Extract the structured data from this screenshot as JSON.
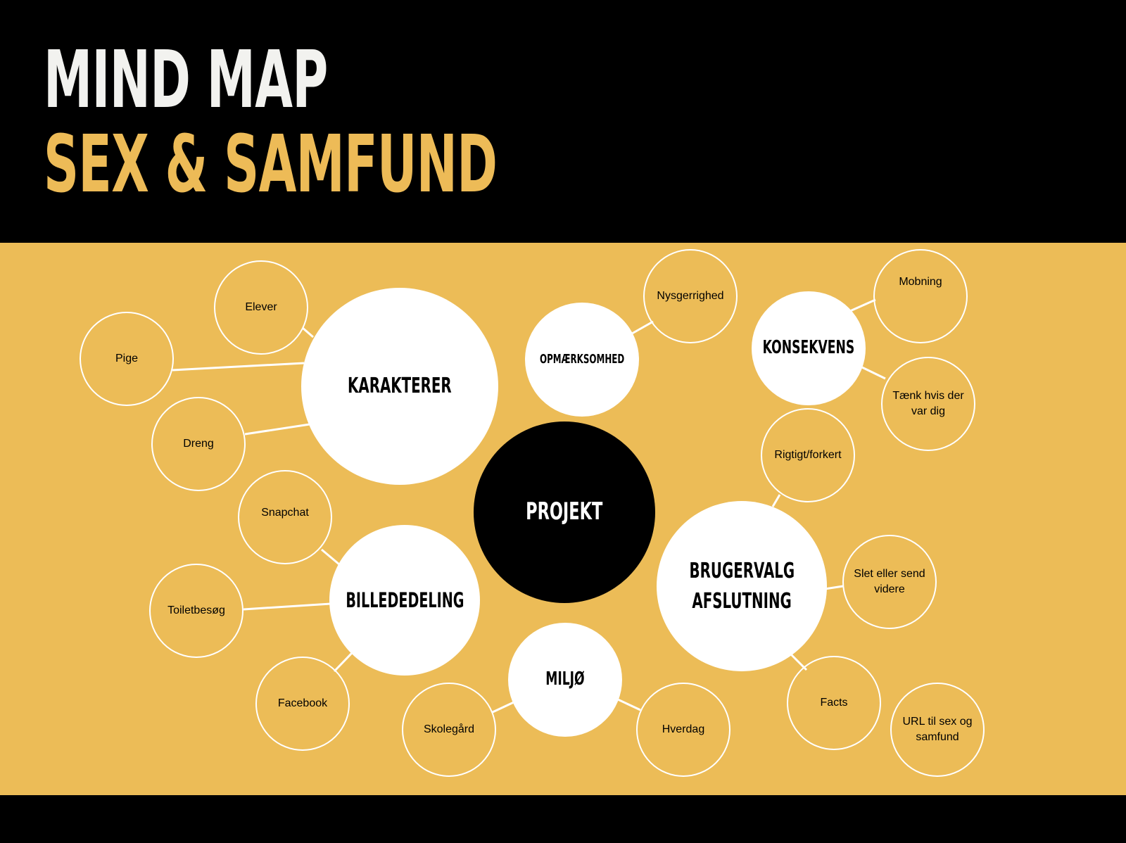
{
  "title": {
    "line1": "MIND MAP",
    "line2": "SEX & SAMFUND"
  },
  "colors": {
    "background": "#ecbc57",
    "header": "#000000",
    "accent": "#edbb57",
    "node_fill": "#ffffff",
    "center_fill": "#000000"
  },
  "nodes": {
    "projekt": "PROJEKT",
    "karakterer": "KARAKTERER",
    "opmaerksomhed": "OPMÆRKSOMHED",
    "konsekvens": "KONSEKVENS",
    "brugervalg_1": "BRUGERVALG",
    "brugervalg_2": "AFSLUTNING",
    "billededeling": "BILLEDEDELING",
    "miljo": "MILJØ",
    "elever": "Elever",
    "pige": "Pige",
    "dreng": "Dreng",
    "nysgerrighed": "Nysgerrighed",
    "mobning": "Mobning",
    "taenk": "Tænk hvis der var dig",
    "rigtigt": "Rigtigt/forkert",
    "slet": "Slet eller send videre",
    "facts": "Facts",
    "url": "URL til sex og samfund",
    "snapchat": "Snapchat",
    "toiletbesog": "Toiletbesøg",
    "facebook": "Facebook",
    "skolegard": "Skolegård",
    "hverdag": "Hverdag"
  }
}
